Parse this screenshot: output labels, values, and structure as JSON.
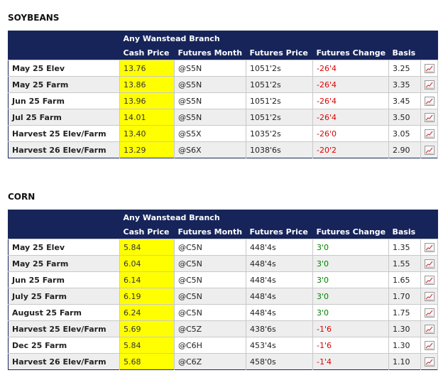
{
  "sections": [
    {
      "title": "SOYBEANS",
      "branch": "Any Wanstead Branch",
      "columns": [
        "Cash Price",
        "Futures Month",
        "Futures Price",
        "Futures Change",
        "Basis"
      ],
      "rows": [
        {
          "location": "May 25 Elev",
          "cash": "13.76",
          "month": "@S5N",
          "futures": "1051'2s",
          "change": "-26'4",
          "change_dir": "neg",
          "basis": "3.25"
        },
        {
          "location": "May 25 Farm",
          "cash": "13.86",
          "month": "@S5N",
          "futures": "1051'2s",
          "change": "-26'4",
          "change_dir": "neg",
          "basis": "3.35"
        },
        {
          "location": "Jun 25 Farm",
          "cash": "13.96",
          "month": "@S5N",
          "futures": "1051'2s",
          "change": "-26'4",
          "change_dir": "neg",
          "basis": "3.45"
        },
        {
          "location": "Jul 25 Farm",
          "cash": "14.01",
          "month": "@S5N",
          "futures": "1051'2s",
          "change": "-26'4",
          "change_dir": "neg",
          "basis": "3.50"
        },
        {
          "location": "Harvest 25 Elev/Farm",
          "cash": "13.40",
          "month": "@S5X",
          "futures": "1035'2s",
          "change": "-26'0",
          "change_dir": "neg",
          "basis": "3.05"
        },
        {
          "location": "Harvest 26 Elev/Farm",
          "cash": "13.29",
          "month": "@S6X",
          "futures": "1038'6s",
          "change": "-20'2",
          "change_dir": "neg",
          "basis": "2.90"
        }
      ]
    },
    {
      "title": "CORN",
      "branch": "Any Wanstead Branch",
      "columns": [
        "Cash Price",
        "Futures Month",
        "Futures Price",
        "Futures Change",
        "Basis"
      ],
      "rows": [
        {
          "location": "May 25 Elev",
          "cash": "5.84",
          "month": "@C5N",
          "futures": "448'4s",
          "change": "3'0",
          "change_dir": "pos",
          "basis": "1.35"
        },
        {
          "location": "May 25 Farm",
          "cash": "6.04",
          "month": "@C5N",
          "futures": "448'4s",
          "change": "3'0",
          "change_dir": "pos",
          "basis": "1.55"
        },
        {
          "location": "Jun 25 Farm",
          "cash": "6.14",
          "month": "@C5N",
          "futures": "448'4s",
          "change": "3'0",
          "change_dir": "pos",
          "basis": "1.65"
        },
        {
          "location": "July 25 Farm",
          "cash": "6.19",
          "month": "@C5N",
          "futures": "448'4s",
          "change": "3'0",
          "change_dir": "pos",
          "basis": "1.70"
        },
        {
          "location": "August 25 Farm",
          "cash": "6.24",
          "month": "@C5N",
          "futures": "448'4s",
          "change": "3'0",
          "change_dir": "pos",
          "basis": "1.75"
        },
        {
          "location": "Harvest 25 Elev/Farm",
          "cash": "5.69",
          "month": "@C5Z",
          "futures": "438'6s",
          "change": "-1'6",
          "change_dir": "neg",
          "basis": "1.30"
        },
        {
          "location": "Dec 25 Farm",
          "cash": "5.84",
          "month": "@C6H",
          "futures": "453'4s",
          "change": "-1'6",
          "change_dir": "neg",
          "basis": "1.30"
        },
        {
          "location": "Harvest 26 Elev/Farm",
          "cash": "5.68",
          "month": "@C6Z",
          "futures": "458'0s",
          "change": "-1'4",
          "change_dir": "neg",
          "basis": "1.10"
        }
      ]
    }
  ],
  "icons": {
    "chart": "line-chart-icon"
  },
  "colors": {
    "header": "#16245a",
    "cash_highlight": "#ffff00",
    "negative": "#e00000",
    "positive": "#008000"
  }
}
